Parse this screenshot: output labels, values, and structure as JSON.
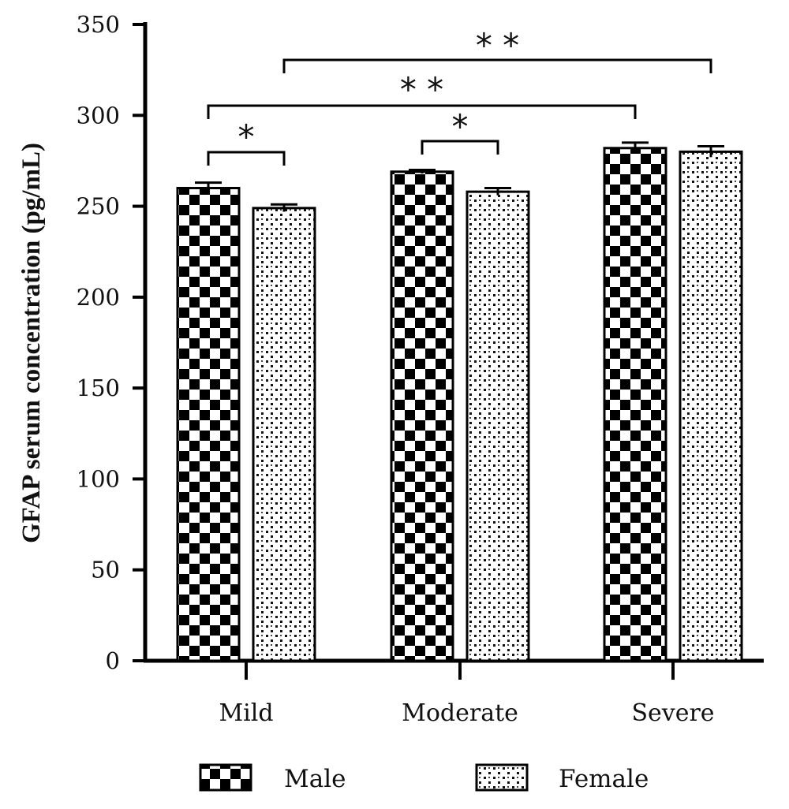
{
  "chart_data": {
    "type": "bar",
    "ylabel": "GFAP serum concentration (pg/mL)",
    "xlabel": "",
    "ylim": [
      0,
      350
    ],
    "yticks": [
      0,
      50,
      100,
      150,
      200,
      250,
      300,
      350
    ],
    "categories": [
      "Mild",
      "Moderate",
      "Severe"
    ],
    "series": [
      {
        "name": "Male",
        "pattern": "checkerboard",
        "values": [
          260,
          269,
          282
        ],
        "errors": [
          3,
          1,
          3
        ]
      },
      {
        "name": "Female",
        "pattern": "dotted",
        "values": [
          249,
          258,
          280
        ],
        "errors": [
          2,
          2,
          3
        ]
      }
    ],
    "significance": [
      {
        "label": "*",
        "from": {
          "category": 0,
          "series": 0
        },
        "to": {
          "category": 0,
          "series": 1
        }
      },
      {
        "label": "*",
        "from": {
          "category": 1,
          "series": 0
        },
        "to": {
          "category": 1,
          "series": 1
        }
      },
      {
        "label": "**",
        "from": {
          "category": 0,
          "series": 0
        },
        "to": {
          "category": 2,
          "series": 0
        }
      },
      {
        "label": "**",
        "from": {
          "category": 0,
          "series": 1
        },
        "to": {
          "category": 2,
          "series": 1
        }
      }
    ],
    "legend": {
      "placement": "bottom",
      "entries": [
        "Male",
        "Female"
      ]
    },
    "grid": false,
    "colors": {
      "ink": "#000000",
      "background": "#ffffff"
    }
  }
}
